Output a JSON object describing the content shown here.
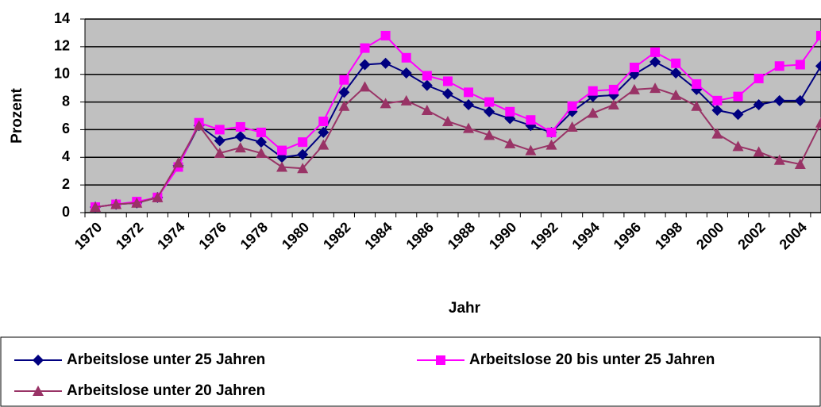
{
  "chart_data": {
    "type": "line",
    "x_label": "Jahr",
    "y_label": "Prozent",
    "categories": [
      "1970",
      null,
      "1972",
      null,
      "1974",
      null,
      "1976",
      null,
      "1978",
      null,
      "1980",
      null,
      "1982",
      null,
      "1984",
      null,
      "1986",
      null,
      "1988",
      null,
      "1990",
      null,
      "1992",
      null,
      "1994",
      null,
      "1996",
      null,
      "1998",
      null,
      "2000",
      null,
      "2002",
      null,
      "2004",
      null
    ],
    "series": [
      {
        "name": "Arbeitslose unter 25 Jahren",
        "color": "#000080",
        "marker": "diamond",
        "values": [
          0.4,
          0.6,
          0.7,
          1.1,
          3.4,
          6.3,
          5.2,
          5.5,
          5.1,
          4.0,
          4.2,
          5.8,
          8.7,
          10.7,
          10.8,
          10.1,
          9.2,
          8.6,
          7.8,
          7.3,
          6.8,
          6.3,
          5.8,
          7.3,
          8.4,
          8.5,
          10.0,
          10.9,
          10.1,
          8.9,
          7.4,
          7.1,
          7.8,
          8.1,
          8.1,
          10.6
        ]
      },
      {
        "name": "Arbeitslose 20 bis unter 25 Jahren",
        "color": "#ff00ff",
        "marker": "square",
        "values": [
          0.4,
          0.6,
          0.8,
          1.1,
          3.3,
          6.5,
          6.0,
          6.2,
          5.8,
          4.5,
          5.1,
          6.6,
          9.6,
          11.9,
          12.8,
          11.2,
          9.9,
          9.5,
          8.7,
          8.0,
          7.3,
          6.7,
          5.8,
          7.7,
          8.8,
          8.9,
          10.5,
          11.6,
          10.8,
          9.3,
          8.1,
          8.4,
          9.7,
          10.6,
          10.7,
          12.8
        ]
      },
      {
        "name": "Arbeitslose unter 20 Jahren",
        "color": "#993366",
        "marker": "triangle",
        "values": [
          0.4,
          0.6,
          0.7,
          1.1,
          3.6,
          6.3,
          4.3,
          4.7,
          4.3,
          3.3,
          3.2,
          4.9,
          7.7,
          9.1,
          7.9,
          8.1,
          7.4,
          6.6,
          6.1,
          5.6,
          5.0,
          4.5,
          4.9,
          6.2,
          7.2,
          7.8,
          8.9,
          9.0,
          8.5,
          7.7,
          5.7,
          4.8,
          4.4,
          3.8,
          3.5,
          6.5
        ]
      }
    ],
    "ylim": [
      0,
      14
    ],
    "yticks": [
      0,
      2,
      4,
      6,
      8,
      10,
      12,
      14
    ],
    "grid": true
  }
}
